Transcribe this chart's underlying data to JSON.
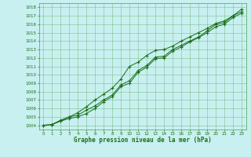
{
  "title": "Graphe pression niveau de la mer (hPa)",
  "bg_color": "#c8f0f0",
  "grid_color": "#4da04d",
  "line_color": "#1a6e1a",
  "marker_color": "#1a6e1a",
  "xlim": [
    -0.5,
    23.5
  ],
  "ylim": [
    1003.5,
    1018.5
  ],
  "xticks": [
    0,
    1,
    2,
    3,
    4,
    5,
    6,
    7,
    8,
    9,
    10,
    11,
    12,
    13,
    14,
    15,
    16,
    17,
    18,
    19,
    20,
    21,
    22,
    23
  ],
  "yticks": [
    1004,
    1005,
    1006,
    1007,
    1008,
    1009,
    1010,
    1011,
    1012,
    1013,
    1014,
    1015,
    1016,
    1017,
    1018
  ],
  "line1_x": [
    0,
    1,
    2,
    3,
    4,
    5,
    6,
    7,
    8,
    9,
    10,
    11,
    12,
    13,
    14,
    15,
    16,
    17,
    18,
    19,
    20,
    21,
    22,
    23
  ],
  "line1": [
    1004.0,
    1004.1,
    1004.6,
    1005.0,
    1005.2,
    1005.8,
    1006.3,
    1007.0,
    1007.6,
    1008.8,
    1009.3,
    1010.5,
    1011.1,
    1012.1,
    1012.2,
    1013.0,
    1013.5,
    1014.0,
    1014.5,
    1015.2,
    1016.0,
    1016.2,
    1017.0,
    1017.5
  ],
  "line2_x": [
    0,
    1,
    2,
    3,
    4,
    5,
    6,
    7,
    8,
    9,
    10,
    11,
    12,
    13,
    14,
    15,
    16,
    17,
    18,
    19,
    20,
    21,
    22,
    23
  ],
  "line2": [
    1004.0,
    1004.1,
    1004.5,
    1004.8,
    1005.0,
    1005.4,
    1006.0,
    1006.8,
    1007.4,
    1008.6,
    1009.0,
    1010.3,
    1010.9,
    1011.9,
    1012.0,
    1012.8,
    1013.3,
    1013.9,
    1014.4,
    1015.0,
    1015.7,
    1016.0,
    1016.8,
    1017.3
  ],
  "line3_x": [
    1,
    2,
    3,
    4,
    5,
    6,
    7,
    8,
    9,
    10,
    11,
    12,
    13,
    14,
    15,
    16,
    17,
    18,
    19,
    20,
    21,
    22,
    23
  ],
  "line3": [
    1004.1,
    1004.5,
    1005.0,
    1005.5,
    1006.2,
    1007.0,
    1007.7,
    1008.4,
    1009.5,
    1011.0,
    1011.5,
    1012.3,
    1012.9,
    1013.0,
    1013.4,
    1014.0,
    1014.5,
    1015.0,
    1015.5,
    1016.1,
    1016.4,
    1017.0,
    1017.8
  ]
}
